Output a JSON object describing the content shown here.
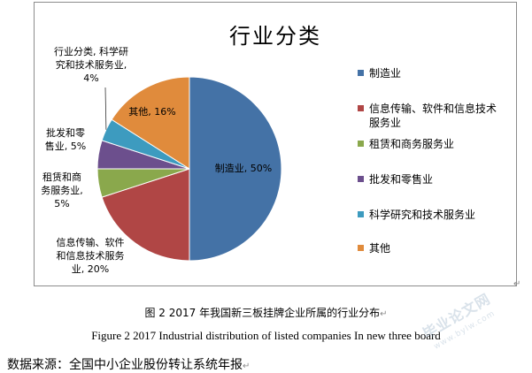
{
  "chart_data": {
    "type": "pie",
    "title": "行业分类",
    "slices": [
      {
        "name": "制造业",
        "value": 50,
        "color": "#4472a6",
        "label": "制造业, 50%"
      },
      {
        "name": "信息传输、软件和信息技术服务业",
        "value": 20,
        "color": "#b04645",
        "label": "信息传输、软件\n和信息技术服务\n业, 20%"
      },
      {
        "name": "租赁和商务服务业",
        "value": 5,
        "color": "#8aa84c",
        "label": "租赁和商\n务服务业,\n5%"
      },
      {
        "name": "批发和零售业",
        "value": 5,
        "color": "#6c4f8d",
        "label": "批发和零\n售业, 5%"
      },
      {
        "name": "科学研究和技术服务业",
        "value": 4,
        "color": "#3d9bbf",
        "label": "行业分类, 科学研\n究和技术服务业,\n4%"
      },
      {
        "name": "其他",
        "value": 16,
        "color": "#e08b3c",
        "label": "其他, 16%"
      }
    ],
    "legend": [
      "制造业",
      "信息传输、软件和信息技术服务业",
      "租赁和商务服务业",
      "批发和零售业",
      "科学研究和技术服务业",
      "其他"
    ],
    "legend_position": "right"
  },
  "caption_cn": "图 2  2017 年我国新三板挂牌企业所属的行业分布",
  "caption_en": "Figure 2    2017 Industrial distribution of listed companies In new three board",
  "source": "数据来源：全国中小企业股份转让系统年报",
  "watermark": {
    "main": "毕业论文网",
    "sub": "www.bylw.com"
  },
  "paragraph_mark": "↵"
}
